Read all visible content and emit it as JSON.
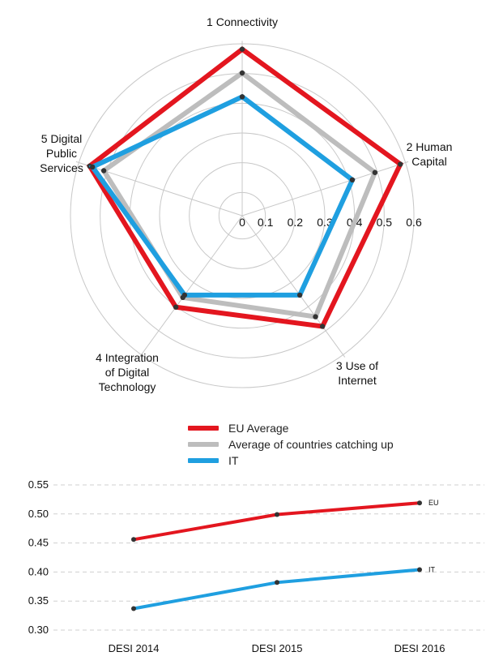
{
  "chart_data": [
    {
      "type": "radar",
      "axes": [
        "1 Connectivity",
        "2 Human Capital",
        "3 Use of Internet",
        "4 Integration of Digital Technology",
        "5 Digital Public Services"
      ],
      "axis_label_lines": [
        [
          "1 Connectivity"
        ],
        [
          "2 Human",
          "Capital"
        ],
        [
          "3 Use of",
          "Internet"
        ],
        [
          "4 Integration",
          "of Digital",
          "Technology"
        ],
        [
          "5 Digital",
          "Public",
          "Services"
        ]
      ],
      "rlim": [
        0,
        0.6
      ],
      "ticks": [
        "0",
        "0.1",
        "0.2",
        "0.3",
        "0.4",
        "0.5",
        "0.6"
      ],
      "series": [
        {
          "name": "EU Average",
          "color": "#e3161f",
          "values": [
            0.56,
            0.56,
            0.46,
            0.38,
            0.54
          ]
        },
        {
          "name": "Average of countries catching up",
          "color": "#bdbdbd",
          "values": [
            0.48,
            0.47,
            0.42,
            0.34,
            0.49
          ]
        },
        {
          "name": "IT",
          "color": "#1f9fe0",
          "values": [
            0.4,
            0.39,
            0.33,
            0.33,
            0.53
          ]
        }
      ]
    },
    {
      "type": "line",
      "categories": [
        "DESI 2014",
        "DESI 2015",
        "DESI 2016"
      ],
      "ylim": [
        0.3,
        0.55
      ],
      "yticks": [
        "0.30",
        "0.35",
        "0.40",
        "0.45",
        "0.50",
        "0.55"
      ],
      "series": [
        {
          "name": "EU",
          "color": "#e3161f",
          "values": [
            0.456,
            0.499,
            0.519
          ]
        },
        {
          "name": "IT",
          "color": "#1f9fe0",
          "values": [
            0.337,
            0.382,
            0.404
          ]
        }
      ]
    }
  ],
  "legend": [
    {
      "label": "EU Average",
      "color": "#e3161f"
    },
    {
      "label": "Average of countries catching up",
      "color": "#bdbdbd"
    },
    {
      "label": "IT",
      "color": "#1f9fe0"
    }
  ]
}
